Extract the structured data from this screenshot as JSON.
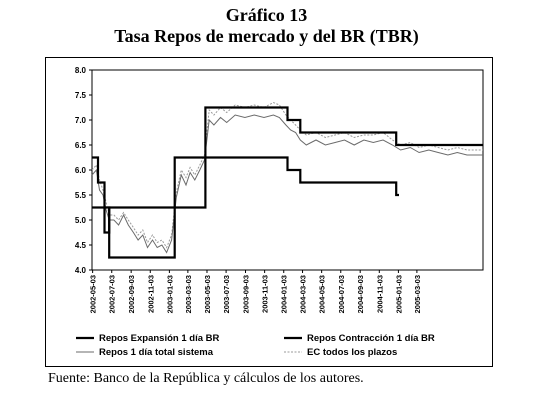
{
  "figure": {
    "title": "Gráfico 13",
    "subtitle": "Tasa Repos de mercado y del BR (TBR)",
    "source": "Fuente: Banco de la República y cálculos de los autores."
  },
  "chart_data": {
    "type": "line",
    "ylim": [
      4.0,
      8.0
    ],
    "yticks": [
      "4.0",
      "4.5",
      "5.0",
      "5.5",
      "6.0",
      "6.5",
      "7.0",
      "7.5",
      "8.0"
    ],
    "xlim": [
      "2002-05-01",
      "2005-09-30"
    ],
    "xticks": [
      "2002-05-03",
      "2002-07-03",
      "2002-09-03",
      "2002-11-03",
      "2003-01-03",
      "2003-03-03",
      "2003-05-03",
      "2003-07-03",
      "2003-09-03",
      "2003-11-03",
      "2004-01-03",
      "2004-03-03",
      "2004-05-03",
      "2004-07-03",
      "2004-09-03",
      "2004-11-03",
      "2005-01-03",
      "2005-03-03"
    ],
    "grid": false,
    "legend_position": "bottom",
    "series": [
      {
        "name": "Repos Expansión 1 día BR",
        "style": "solid-thick",
        "color": "#000000",
        "points": [
          [
            "2002-05-01",
            6.25
          ],
          [
            "2002-05-20",
            6.25
          ],
          [
            "2002-05-20",
            5.75
          ],
          [
            "2002-06-10",
            5.75
          ],
          [
            "2002-06-10",
            5.25
          ],
          [
            "2002-06-25",
            5.25
          ],
          [
            "2002-06-25",
            4.25
          ],
          [
            "2003-01-20",
            4.25
          ],
          [
            "2003-01-20",
            5.25
          ],
          [
            "2003-04-28",
            5.25
          ],
          [
            "2003-04-28",
            6.25
          ],
          [
            "2004-01-15",
            6.25
          ],
          [
            "2004-01-15",
            6.0
          ],
          [
            "2004-02-25",
            6.0
          ],
          [
            "2004-02-25",
            5.75
          ],
          [
            "2004-12-27",
            5.75
          ],
          [
            "2004-12-27",
            5.5
          ],
          [
            "2005-01-05",
            5.5
          ]
        ]
      },
      {
        "name": "Repos Contracción 1 día BR",
        "style": "solid-thick",
        "color": "#000000",
        "points": [
          [
            "2002-05-01",
            5.25
          ],
          [
            "2002-06-10",
            5.25
          ],
          [
            "2002-06-10",
            4.75
          ],
          [
            "2002-06-25",
            4.75
          ],
          [
            "2002-06-25",
            5.25
          ],
          [
            "2003-01-20",
            5.25
          ],
          [
            "2003-01-20",
            6.25
          ],
          [
            "2003-04-28",
            6.25
          ],
          [
            "2003-04-28",
            7.25
          ],
          [
            "2004-01-15",
            7.25
          ],
          [
            "2004-01-15",
            7.0
          ],
          [
            "2004-02-25",
            7.0
          ],
          [
            "2004-02-25",
            6.75
          ],
          [
            "2004-12-27",
            6.75
          ],
          [
            "2004-12-27",
            6.5
          ],
          [
            "2005-09-30",
            6.5
          ]
        ]
      },
      {
        "name": "Repos 1 día total sistema",
        "style": "solid-thin",
        "color": "#6b6b6b",
        "points": [
          [
            "2002-05-01",
            5.9
          ],
          [
            "2002-05-15",
            6.0
          ],
          [
            "2002-05-25",
            5.6
          ],
          [
            "2002-06-05",
            5.5
          ],
          [
            "2002-06-15",
            5.2
          ],
          [
            "2002-06-25",
            5.0
          ],
          [
            "2002-07-10",
            5.0
          ],
          [
            "2002-07-25",
            4.9
          ],
          [
            "2002-08-10",
            5.1
          ],
          [
            "2002-08-25",
            4.9
          ],
          [
            "2002-09-10",
            4.75
          ],
          [
            "2002-09-25",
            4.6
          ],
          [
            "2002-10-10",
            4.7
          ],
          [
            "2002-10-25",
            4.45
          ],
          [
            "2002-11-10",
            4.6
          ],
          [
            "2002-11-25",
            4.45
          ],
          [
            "2002-12-10",
            4.5
          ],
          [
            "2002-12-25",
            4.35
          ],
          [
            "2003-01-10",
            4.6
          ],
          [
            "2003-01-25",
            5.45
          ],
          [
            "2003-02-10",
            5.9
          ],
          [
            "2003-02-25",
            5.7
          ],
          [
            "2003-03-10",
            5.95
          ],
          [
            "2003-03-25",
            5.8
          ],
          [
            "2003-04-10",
            6.0
          ],
          [
            "2003-04-25",
            6.2
          ],
          [
            "2003-05-10",
            7.0
          ],
          [
            "2003-05-25",
            6.9
          ],
          [
            "2003-06-15",
            7.05
          ],
          [
            "2003-07-05",
            6.95
          ],
          [
            "2003-08-01",
            7.1
          ],
          [
            "2003-09-01",
            7.05
          ],
          [
            "2003-10-01",
            7.1
          ],
          [
            "2003-11-01",
            7.05
          ],
          [
            "2003-12-01",
            7.1
          ],
          [
            "2003-12-20",
            7.05
          ],
          [
            "2004-01-10",
            6.9
          ],
          [
            "2004-01-25",
            6.8
          ],
          [
            "2004-02-10",
            6.75
          ],
          [
            "2004-02-25",
            6.6
          ],
          [
            "2004-03-15",
            6.5
          ],
          [
            "2004-04-15",
            6.6
          ],
          [
            "2004-05-15",
            6.5
          ],
          [
            "2004-06-15",
            6.55
          ],
          [
            "2004-07-15",
            6.6
          ],
          [
            "2004-08-15",
            6.5
          ],
          [
            "2004-09-15",
            6.6
          ],
          [
            "2004-10-15",
            6.55
          ],
          [
            "2004-11-15",
            6.6
          ],
          [
            "2004-12-15",
            6.5
          ],
          [
            "2005-01-10",
            6.4
          ],
          [
            "2005-02-10",
            6.45
          ],
          [
            "2005-03-10",
            6.35
          ],
          [
            "2005-04-10",
            6.4
          ],
          [
            "2005-05-10",
            6.35
          ],
          [
            "2005-06-10",
            6.3
          ],
          [
            "2005-07-10",
            6.35
          ],
          [
            "2005-08-10",
            6.3
          ],
          [
            "2005-09-30",
            6.3
          ]
        ]
      },
      {
        "name": "EC todos los plazos",
        "style": "dashed",
        "color": "#9a9a9a",
        "points": [
          [
            "2002-05-01",
            6.0
          ],
          [
            "2002-05-15",
            6.1
          ],
          [
            "2002-05-25",
            5.8
          ],
          [
            "2002-06-05",
            5.6
          ],
          [
            "2002-06-15",
            5.35
          ],
          [
            "2002-06-25",
            5.1
          ],
          [
            "2002-07-10",
            5.1
          ],
          [
            "2002-07-25",
            5.0
          ],
          [
            "2002-08-10",
            5.15
          ],
          [
            "2002-08-25",
            5.0
          ],
          [
            "2002-09-10",
            4.85
          ],
          [
            "2002-09-25",
            4.7
          ],
          [
            "2002-10-10",
            4.8
          ],
          [
            "2002-10-25",
            4.55
          ],
          [
            "2002-11-10",
            4.7
          ],
          [
            "2002-11-25",
            4.55
          ],
          [
            "2002-12-10",
            4.6
          ],
          [
            "2002-12-25",
            4.45
          ],
          [
            "2003-01-10",
            4.7
          ],
          [
            "2003-01-25",
            5.55
          ],
          [
            "2003-02-10",
            6.0
          ],
          [
            "2003-02-25",
            5.85
          ],
          [
            "2003-03-10",
            6.05
          ],
          [
            "2003-03-25",
            5.9
          ],
          [
            "2003-04-10",
            6.1
          ],
          [
            "2003-04-25",
            6.3
          ],
          [
            "2003-05-10",
            7.2
          ],
          [
            "2003-05-25",
            7.1
          ],
          [
            "2003-06-15",
            7.25
          ],
          [
            "2003-07-05",
            7.15
          ],
          [
            "2003-08-01",
            7.3
          ],
          [
            "2003-09-01",
            7.25
          ],
          [
            "2003-10-01",
            7.3
          ],
          [
            "2003-11-01",
            7.25
          ],
          [
            "2003-12-01",
            7.35
          ],
          [
            "2003-12-20",
            7.3
          ],
          [
            "2004-01-10",
            7.1
          ],
          [
            "2004-01-25",
            7.0
          ],
          [
            "2004-02-10",
            6.9
          ],
          [
            "2004-02-25",
            6.8
          ],
          [
            "2004-03-15",
            6.7
          ],
          [
            "2004-04-15",
            6.75
          ],
          [
            "2004-05-15",
            6.65
          ],
          [
            "2004-06-15",
            6.7
          ],
          [
            "2004-07-15",
            6.75
          ],
          [
            "2004-08-15",
            6.65
          ],
          [
            "2004-09-15",
            6.7
          ],
          [
            "2004-10-15",
            6.7
          ],
          [
            "2004-11-15",
            6.75
          ],
          [
            "2004-12-15",
            6.6
          ],
          [
            "2005-01-10",
            6.5
          ],
          [
            "2005-02-10",
            6.55
          ],
          [
            "2005-03-10",
            6.45
          ],
          [
            "2005-04-10",
            6.5
          ],
          [
            "2005-05-10",
            6.45
          ],
          [
            "2005-06-10",
            6.4
          ],
          [
            "2005-07-10",
            6.45
          ],
          [
            "2005-08-10",
            6.4
          ],
          [
            "2005-09-30",
            6.4
          ]
        ]
      }
    ]
  }
}
